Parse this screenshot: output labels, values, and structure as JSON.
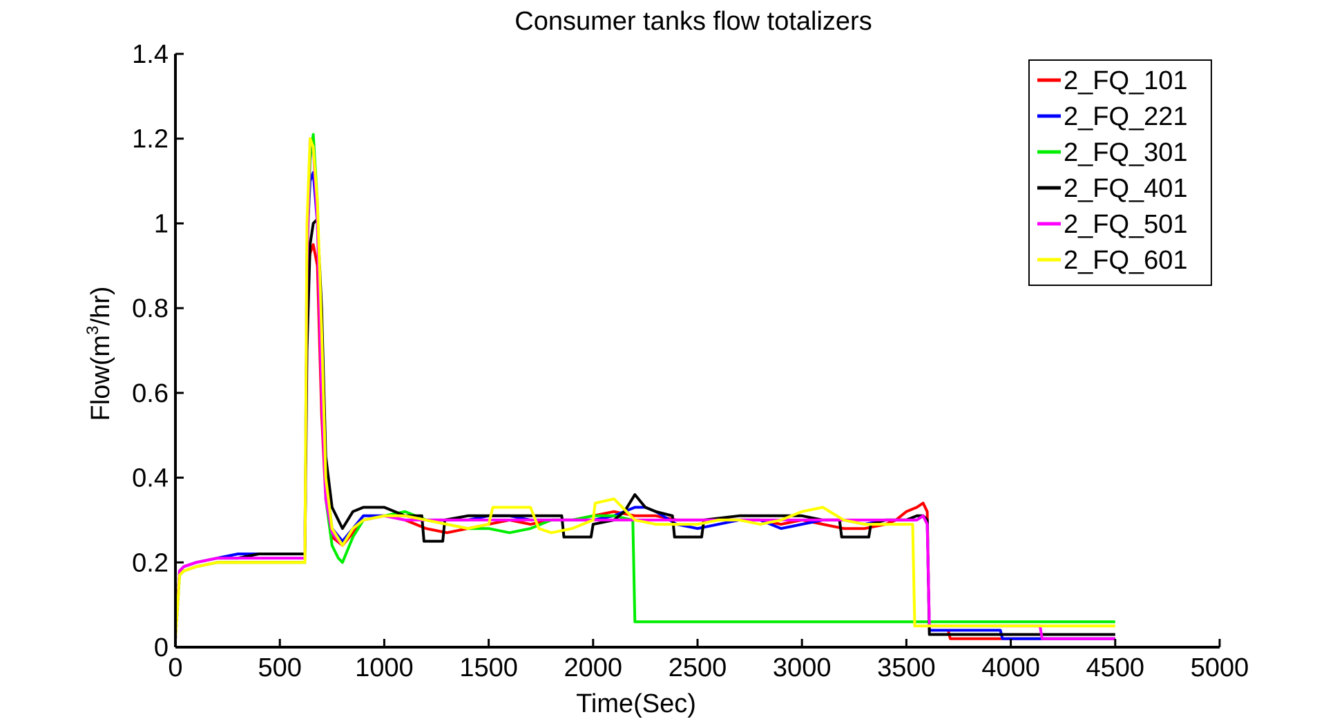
{
  "chart_data": {
    "type": "line",
    "title": "Consumer tanks flow totalizers",
    "xlabel": "Time(Sec)",
    "ylabel_main": "Flow(m",
    "ylabel_sup": "3",
    "ylabel_tail": "/hr)",
    "xlim": [
      0,
      5000
    ],
    "ylim": [
      0,
      1.4
    ],
    "xticks": [
      0,
      500,
      1000,
      1500,
      2000,
      2500,
      3000,
      3500,
      4000,
      4500,
      5000
    ],
    "yticks": [
      0,
      0.2,
      0.4,
      0.6,
      0.8,
      1,
      1.2,
      1.4
    ],
    "xtick_labels": [
      "0",
      "500",
      "1000",
      "1500",
      "2000",
      "2500",
      "3000",
      "3500",
      "4000",
      "4500",
      "5000"
    ],
    "ytick_labels": [
      "0",
      "0.2",
      "0.4",
      "0.6",
      "0.8",
      "1",
      "1.2",
      "1.4"
    ],
    "grid": false,
    "legend_position": "top-right",
    "series": [
      {
        "name": "2_FQ_101",
        "color": "#ff0000",
        "x": [
          0,
          20,
          40,
          100,
          200,
          300,
          400,
          500,
          600,
          620,
          630,
          645,
          660,
          680,
          700,
          720,
          750,
          800,
          850,
          900,
          1000,
          1100,
          1200,
          1300,
          1400,
          1500,
          1600,
          1700,
          1800,
          1900,
          2000,
          2100,
          2200,
          2300,
          2400,
          2500,
          2600,
          2700,
          2800,
          2900,
          3000,
          3100,
          3200,
          3300,
          3400,
          3450,
          3500,
          3550,
          3580,
          3600,
          3610,
          3700,
          3710,
          3900,
          4500
        ],
        "y": [
          0.02,
          0.17,
          0.18,
          0.19,
          0.2,
          0.2,
          0.2,
          0.2,
          0.2,
          0.2,
          0.85,
          0.93,
          0.95,
          0.9,
          0.55,
          0.35,
          0.26,
          0.24,
          0.27,
          0.3,
          0.31,
          0.3,
          0.28,
          0.27,
          0.28,
          0.29,
          0.3,
          0.29,
          0.3,
          0.3,
          0.31,
          0.32,
          0.31,
          0.31,
          0.3,
          0.3,
          0.3,
          0.3,
          0.3,
          0.29,
          0.3,
          0.29,
          0.28,
          0.28,
          0.29,
          0.3,
          0.32,
          0.33,
          0.34,
          0.32,
          0.04,
          0.04,
          0.02,
          0.02,
          0.02
        ]
      },
      {
        "name": "2_FQ_221",
        "color": "#0000ff",
        "x": [
          0,
          20,
          40,
          100,
          200,
          300,
          400,
          500,
          600,
          620,
          630,
          645,
          660,
          680,
          700,
          720,
          750,
          800,
          850,
          900,
          1000,
          1100,
          1200,
          1300,
          1400,
          1500,
          1600,
          1700,
          1800,
          1900,
          2000,
          2100,
          2200,
          2250,
          2300,
          2400,
          2500,
          2600,
          2700,
          2800,
          2900,
          3000,
          3100,
          3200,
          3300,
          3400,
          3500,
          3550,
          3580,
          3600,
          3610,
          3950,
          3960,
          4500
        ],
        "y": [
          0.02,
          0.18,
          0.19,
          0.2,
          0.21,
          0.22,
          0.22,
          0.22,
          0.22,
          0.22,
          0.95,
          1.1,
          1.12,
          1.0,
          0.7,
          0.4,
          0.28,
          0.25,
          0.28,
          0.31,
          0.31,
          0.31,
          0.3,
          0.3,
          0.3,
          0.31,
          0.31,
          0.3,
          0.3,
          0.3,
          0.3,
          0.31,
          0.33,
          0.33,
          0.32,
          0.29,
          0.28,
          0.29,
          0.3,
          0.3,
          0.28,
          0.29,
          0.3,
          0.3,
          0.29,
          0.3,
          0.3,
          0.3,
          0.31,
          0.3,
          0.04,
          0.04,
          0.02,
          0.02
        ]
      },
      {
        "name": "2_FQ_301",
        "color": "#00ee00",
        "x": [
          0,
          20,
          40,
          100,
          200,
          300,
          400,
          500,
          600,
          620,
          630,
          645,
          660,
          680,
          700,
          720,
          750,
          780,
          800,
          850,
          900,
          1000,
          1100,
          1200,
          1300,
          1400,
          1500,
          1600,
          1700,
          1800,
          1900,
          2000,
          2100,
          2190,
          2200,
          3600,
          4500
        ],
        "y": [
          0.02,
          0.17,
          0.18,
          0.19,
          0.2,
          0.2,
          0.2,
          0.2,
          0.2,
          0.2,
          0.9,
          1.15,
          1.21,
          1.05,
          0.7,
          0.35,
          0.24,
          0.21,
          0.2,
          0.26,
          0.3,
          0.31,
          0.32,
          0.3,
          0.29,
          0.28,
          0.28,
          0.27,
          0.28,
          0.3,
          0.3,
          0.31,
          0.31,
          0.3,
          0.06,
          0.06,
          0.06
        ]
      },
      {
        "name": "2_FQ_401",
        "color": "#000000",
        "x": [
          0,
          20,
          40,
          100,
          200,
          300,
          400,
          500,
          600,
          620,
          630,
          645,
          660,
          680,
          700,
          720,
          750,
          800,
          850,
          900,
          1000,
          1100,
          1180,
          1190,
          1280,
          1290,
          1400,
          1500,
          1600,
          1700,
          1800,
          1850,
          1860,
          1990,
          2000,
          2100,
          2150,
          2200,
          2250,
          2300,
          2380,
          2390,
          2520,
          2530,
          2700,
          2800,
          2900,
          3000,
          3100,
          3180,
          3190,
          3320,
          3330,
          3400,
          3500,
          3550,
          3580,
          3600,
          3610,
          4000,
          4010,
          4500
        ],
        "y": [
          0.02,
          0.18,
          0.19,
          0.2,
          0.21,
          0.21,
          0.22,
          0.22,
          0.22,
          0.22,
          0.7,
          0.95,
          1.0,
          1.01,
          0.8,
          0.45,
          0.33,
          0.28,
          0.32,
          0.33,
          0.33,
          0.31,
          0.31,
          0.25,
          0.25,
          0.3,
          0.31,
          0.31,
          0.31,
          0.31,
          0.31,
          0.31,
          0.26,
          0.26,
          0.29,
          0.3,
          0.32,
          0.36,
          0.33,
          0.32,
          0.31,
          0.26,
          0.26,
          0.3,
          0.31,
          0.31,
          0.31,
          0.31,
          0.3,
          0.3,
          0.26,
          0.26,
          0.29,
          0.3,
          0.3,
          0.31,
          0.31,
          0.3,
          0.03,
          0.03,
          0.03,
          0.03
        ]
      },
      {
        "name": "2_FQ_501",
        "color": "#ff00ff",
        "x": [
          0,
          20,
          40,
          100,
          200,
          300,
          400,
          500,
          600,
          620,
          630,
          645,
          660,
          680,
          700,
          720,
          750,
          800,
          850,
          900,
          1000,
          1100,
          1200,
          1300,
          1400,
          1500,
          1600,
          1700,
          1800,
          1900,
          2000,
          2100,
          2200,
          2300,
          2400,
          2500,
          2600,
          2700,
          2800,
          2900,
          3000,
          3100,
          3200,
          3300,
          3400,
          3500,
          3550,
          3580,
          3600,
          3610,
          4140,
          4150,
          4500
        ],
        "y": [
          0.02,
          0.18,
          0.19,
          0.2,
          0.21,
          0.21,
          0.21,
          0.21,
          0.21,
          0.21,
          0.9,
          1.2,
          1.18,
          1.0,
          0.6,
          0.35,
          0.27,
          0.24,
          0.28,
          0.3,
          0.31,
          0.3,
          0.3,
          0.3,
          0.3,
          0.3,
          0.3,
          0.3,
          0.3,
          0.3,
          0.3,
          0.3,
          0.3,
          0.3,
          0.3,
          0.3,
          0.3,
          0.3,
          0.3,
          0.3,
          0.3,
          0.3,
          0.3,
          0.3,
          0.3,
          0.3,
          0.3,
          0.31,
          0.29,
          0.05,
          0.05,
          0.02,
          0.02
        ]
      },
      {
        "name": "2_FQ_601",
        "color": "#ffff00",
        "x": [
          0,
          20,
          40,
          100,
          200,
          300,
          400,
          500,
          600,
          620,
          630,
          645,
          660,
          680,
          700,
          720,
          750,
          800,
          850,
          900,
          1000,
          1100,
          1200,
          1300,
          1400,
          1500,
          1520,
          1600,
          1700,
          1740,
          1800,
          1900,
          2000,
          2010,
          2100,
          2200,
          2300,
          2400,
          2500,
          2600,
          2700,
          2800,
          2900,
          3000,
          3100,
          3200,
          3300,
          3400,
          3500,
          3530,
          3540,
          4500
        ],
        "y": [
          0.02,
          0.17,
          0.18,
          0.19,
          0.2,
          0.2,
          0.2,
          0.2,
          0.2,
          0.2,
          1.0,
          1.2,
          1.18,
          1.05,
          0.75,
          0.4,
          0.28,
          0.24,
          0.28,
          0.3,
          0.31,
          0.31,
          0.3,
          0.29,
          0.28,
          0.29,
          0.33,
          0.33,
          0.33,
          0.28,
          0.27,
          0.28,
          0.3,
          0.34,
          0.35,
          0.3,
          0.29,
          0.29,
          0.29,
          0.3,
          0.3,
          0.29,
          0.3,
          0.32,
          0.33,
          0.3,
          0.29,
          0.29,
          0.29,
          0.29,
          0.05,
          0.05
        ]
      }
    ]
  }
}
